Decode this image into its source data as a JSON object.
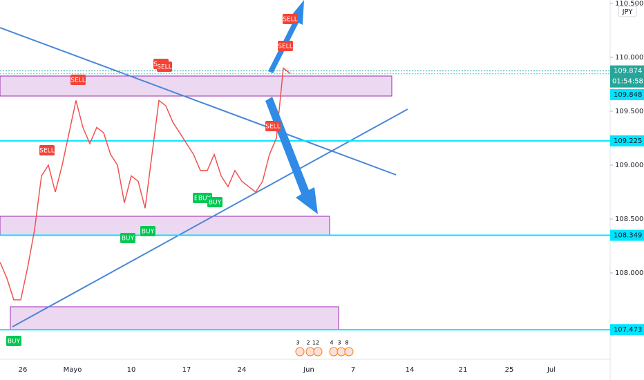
{
  "price_axis": {
    "currency": "JPY",
    "ticks": [
      {
        "value": 110.5,
        "label": "110.500"
      },
      {
        "value": 110,
        "label": "110.000"
      },
      {
        "value": 109.5,
        "label": "109.500"
      },
      {
        "value": 109,
        "label": "109.000"
      },
      {
        "value": 108.5,
        "label": "108.500"
      },
      {
        "value": 108,
        "label": "108.000"
      }
    ]
  },
  "last_price": {
    "value": 109.874,
    "label": "109.874",
    "countdown": "01:54:58"
  },
  "levels": [
    {
      "value": 109.848,
      "label": "109.848"
    },
    {
      "value": 109.225,
      "label": "109.225"
    },
    {
      "value": 108.349,
      "label": "108.349"
    },
    {
      "value": 107.473,
      "label": "107.473"
    }
  ],
  "time_axis": [
    "26",
    "Mayo",
    "10",
    "17",
    "24",
    "Jun",
    "7",
    "14",
    "21",
    "25",
    "Jul"
  ],
  "signals": [
    "SELL",
    "SELL",
    "SELL",
    "SELL",
    "SELL",
    "SELL",
    "SELL",
    "BUY",
    "BUY",
    "BUY",
    "BUY",
    "BUY",
    "BUY"
  ],
  "event_badges": [
    "3",
    "2",
    "12",
    "4",
    "3",
    "8"
  ],
  "price_series": [
    108.1,
    107.95,
    107.75,
    107.75,
    108.05,
    108.4,
    108.9,
    109.0,
    108.75,
    109.0,
    109.3,
    109.6,
    109.35,
    109.2,
    109.35,
    109.3,
    109.1,
    109.0,
    108.65,
    108.9,
    108.85,
    108.6,
    109.1,
    109.6,
    109.55,
    109.4,
    109.3,
    109.2,
    109.1,
    108.95,
    108.95,
    109.1,
    108.9,
    108.8,
    108.95,
    108.85,
    108.8,
    108.75,
    108.85,
    109.1,
    109.25,
    109.9,
    109.85
  ]
}
